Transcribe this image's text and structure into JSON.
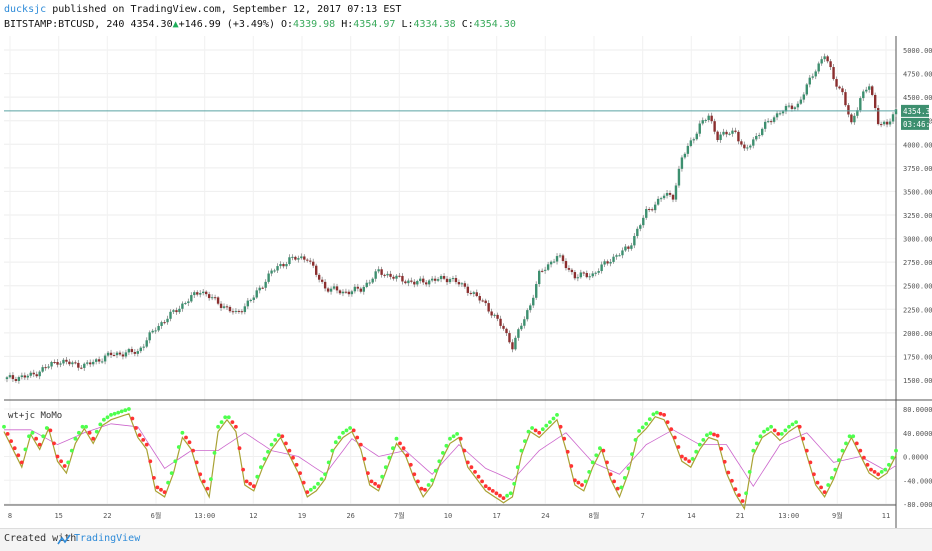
{
  "header": {
    "author": "ducksjc",
    "published_text": "published on TradingView.com, September 12, 2017 07:13 EST",
    "symbol": "BITSTAMP:BTCUSD, 240",
    "last": "4354.30",
    "change_arrow": "▲",
    "change": "+146.99 (+3.49%)",
    "open_label": "O:",
    "open": "4339.98",
    "high_label": "H:",
    "high": "4354.97",
    "low_label": "L:",
    "low": "4334.38",
    "close_label": "C:",
    "close": "4354.30"
  },
  "price_labels": {
    "last": "4354.30",
    "countdown": "03:46:25"
  },
  "indicator_label": "wt+jc MoMo",
  "footer": {
    "created_with": "Created with",
    "brand": "TradingView"
  },
  "colors": {
    "up": "#3d8f6f",
    "down": "#8b2f2f",
    "wick": "#888888",
    "osc_green": "#4dff4d",
    "osc_red": "#ff3333",
    "osc_olive": "#a9a234",
    "osc_signal": "#cc66cc",
    "lastline": "#5aa3a3"
  },
  "chart_data": [
    {
      "type": "candlestick",
      "title": "BITSTAMP:BTCUSD, 240",
      "ylim": [
        1400,
        5100
      ],
      "yticks": [
        "5000.00",
        "4750.00",
        "4500.00",
        "4250.00",
        "4000.00",
        "3750.00",
        "3500.00",
        "3250.00",
        "3000.00",
        "2750.00",
        "2500.00",
        "2250.00",
        "2000.00",
        "1750.00",
        "1500.00"
      ],
      "xticks": [
        "8",
        "15",
        "22",
        "6월",
        "13:00",
        "12",
        "19",
        "26",
        "7월",
        "10",
        "17",
        "24",
        "8월",
        "7",
        "14",
        "21",
        "13:00",
        "9월",
        "11"
      ],
      "x_index_range": [
        0,
        100
      ],
      "close_path": [
        [
          0,
          1510
        ],
        [
          3,
          1545
        ],
        [
          6,
          1700
        ],
        [
          9,
          1650
        ],
        [
          12,
          1770
        ],
        [
          15,
          1800
        ],
        [
          17,
          2050
        ],
        [
          20,
          2300
        ],
        [
          22,
          2450
        ],
        [
          24,
          2320
        ],
        [
          26,
          2200
        ],
        [
          28,
          2380
        ],
        [
          30,
          2650
        ],
        [
          32,
          2780
        ],
        [
          34,
          2800
        ],
        [
          35,
          2620
        ],
        [
          36,
          2480
        ],
        [
          38,
          2430
        ],
        [
          40,
          2460
        ],
        [
          42,
          2650
        ],
        [
          44,
          2580
        ],
        [
          46,
          2530
        ],
        [
          48,
          2560
        ],
        [
          50,
          2580
        ],
        [
          52,
          2460
        ],
        [
          54,
          2300
        ],
        [
          56,
          2040
        ],
        [
          57,
          1860
        ],
        [
          59,
          2300
        ],
        [
          60,
          2620
        ],
        [
          62,
          2820
        ],
        [
          64,
          2600
        ],
        [
          66,
          2620
        ],
        [
          68,
          2780
        ],
        [
          70,
          2900
        ],
        [
          72,
          3280
        ],
        [
          74,
          3460
        ],
        [
          75,
          3450
        ],
        [
          76,
          3850
        ],
        [
          78,
          4200
        ],
        [
          79,
          4300
        ],
        [
          80,
          4080
        ],
        [
          82,
          4140
        ],
        [
          83,
          3920
        ],
        [
          85,
          4170
        ],
        [
          87,
          4350
        ],
        [
          89,
          4420
        ],
        [
          91,
          4800
        ],
        [
          92,
          4950
        ],
        [
          93,
          4700
        ],
        [
          94,
          4540
        ],
        [
          95,
          4200
        ],
        [
          96,
          4500
        ],
        [
          97,
          4620
        ],
        [
          98,
          4250
        ],
        [
          99,
          4200
        ],
        [
          100,
          4354
        ]
      ]
    },
    {
      "type": "line",
      "title": "wt+jc MoMo",
      "ylim": [
        -80,
        80
      ],
      "yticks": [
        "80.0000",
        "40.0000",
        "0.0000",
        "-40.0000",
        "-80.0000"
      ],
      "series": [
        {
          "values_path": [
            [
              0,
              50
            ],
            [
              1,
              20
            ],
            [
              2,
              -10
            ],
            [
              3,
              45
            ],
            [
              4,
              20
            ],
            [
              5,
              55
            ],
            [
              6,
              0
            ],
            [
              7,
              -20
            ],
            [
              8,
              30
            ],
            [
              9,
              55
            ],
            [
              10,
              30
            ],
            [
              11,
              60
            ],
            [
              12,
              70
            ],
            [
              13,
              75
            ],
            [
              14,
              80
            ],
            [
              15,
              40
            ],
            [
              16,
              20
            ],
            [
              17,
              -50
            ],
            [
              18,
              -60
            ],
            [
              19,
              -20
            ],
            [
              20,
              40
            ],
            [
              21,
              20
            ],
            [
              22,
              -30
            ],
            [
              23,
              -60
            ],
            [
              24,
              50
            ],
            [
              25,
              70
            ],
            [
              26,
              50
            ],
            [
              27,
              -40
            ],
            [
              28,
              -50
            ],
            [
              29,
              -10
            ],
            [
              30,
              20
            ],
            [
              31,
              40
            ],
            [
              32,
              10
            ],
            [
              33,
              -20
            ],
            [
              34,
              -60
            ],
            [
              35,
              -50
            ],
            [
              36,
              -30
            ],
            [
              37,
              20
            ],
            [
              38,
              40
            ],
            [
              39,
              50
            ],
            [
              40,
              20
            ],
            [
              41,
              -40
            ],
            [
              42,
              -50
            ],
            [
              43,
              -10
            ],
            [
              44,
              30
            ],
            [
              45,
              10
            ],
            [
              46,
              -30
            ],
            [
              47,
              -60
            ],
            [
              48,
              -40
            ],
            [
              49,
              0
            ],
            [
              50,
              30
            ],
            [
              51,
              40
            ],
            [
              52,
              -10
            ],
            [
              53,
              -30
            ],
            [
              54,
              -50
            ],
            [
              55,
              -60
            ],
            [
              56,
              -70
            ],
            [
              57,
              -60
            ],
            [
              58,
              10
            ],
            [
              59,
              50
            ],
            [
              60,
              40
            ],
            [
              61,
              55
            ],
            [
              62,
              70
            ],
            [
              63,
              20
            ],
            [
              64,
              -40
            ],
            [
              65,
              -50
            ],
            [
              66,
              -10
            ],
            [
              67,
              20
            ],
            [
              68,
              -30
            ],
            [
              69,
              -60
            ],
            [
              70,
              -20
            ],
            [
              71,
              40
            ],
            [
              72,
              55
            ],
            [
              73,
              75
            ],
            [
              74,
              70
            ],
            [
              75,
              40
            ],
            [
              76,
              0
            ],
            [
              77,
              -10
            ],
            [
              78,
              20
            ],
            [
              79,
              40
            ],
            [
              80,
              35
            ],
            [
              81,
              -20
            ],
            [
              82,
              -55
            ],
            [
              83,
              -80
            ],
            [
              84,
              10
            ],
            [
              85,
              40
            ],
            [
              86,
              50
            ],
            [
              87,
              35
            ],
            [
              88,
              50
            ],
            [
              89,
              60
            ],
            [
              90,
              10
            ],
            [
              91,
              -40
            ],
            [
              92,
              -60
            ],
            [
              93,
              -30
            ],
            [
              94,
              10
            ],
            [
              95,
              40
            ],
            [
              96,
              10
            ],
            [
              97,
              -20
            ],
            [
              98,
              -30
            ],
            [
              99,
              -20
            ],
            [
              100,
              10
            ]
          ]
        },
        {
          "values_path": [
            [
              0,
              45
            ],
            [
              3,
              45
            ],
            [
              6,
              20
            ],
            [
              9,
              40
            ],
            [
              12,
              55
            ],
            [
              15,
              50
            ],
            [
              18,
              -20
            ],
            [
              21,
              10
            ],
            [
              24,
              10
            ],
            [
              27,
              40
            ],
            [
              30,
              10
            ],
            [
              33,
              0
            ],
            [
              36,
              -30
            ],
            [
              39,
              30
            ],
            [
              42,
              0
            ],
            [
              45,
              10
            ],
            [
              48,
              -30
            ],
            [
              51,
              20
            ],
            [
              54,
              -20
            ],
            [
              57,
              -40
            ],
            [
              60,
              10
            ],
            [
              63,
              40
            ],
            [
              66,
              -10
            ],
            [
              69,
              -30
            ],
            [
              72,
              20
            ],
            [
              75,
              45
            ],
            [
              78,
              20
            ],
            [
              81,
              20
            ],
            [
              84,
              -50
            ],
            [
              87,
              20
            ],
            [
              90,
              40
            ],
            [
              93,
              -10
            ],
            [
              96,
              0
            ],
            [
              99,
              -25
            ],
            [
              100,
              -15
            ]
          ]
        }
      ]
    }
  ]
}
